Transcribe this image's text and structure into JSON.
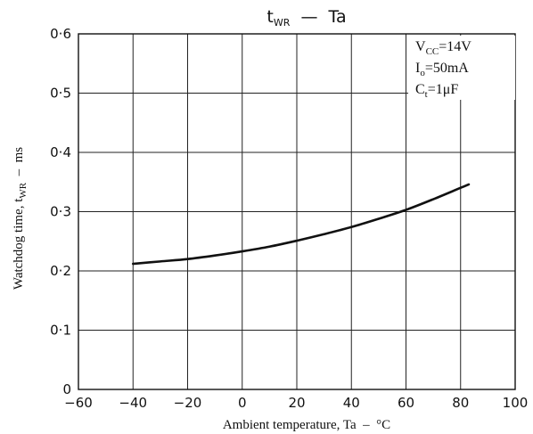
{
  "chart_data": {
    "type": "line",
    "title": {
      "main": "t",
      "main_sub": "WR",
      "rest": "  —  Ta"
    },
    "xlabel": "Ambient temperature, Ta  –  °C",
    "ylabel": {
      "main": "Watchdog time, t",
      "sub": "WR",
      "rest": "  –  ms"
    },
    "xlim": [
      -60,
      100
    ],
    "ylim": [
      0,
      0.6
    ],
    "x_ticks": [
      -60,
      -40,
      -20,
      0,
      20,
      40,
      60,
      80,
      100
    ],
    "x_tick_labels": [
      "−60",
      "−40",
      "−20",
      "0",
      "20",
      "40",
      "60",
      "80",
      "100"
    ],
    "y_ticks": [
      0,
      0.1,
      0.2,
      0.3,
      0.4,
      0.5,
      0.6
    ],
    "y_tick_labels": [
      "0",
      "0·1",
      "0·2",
      "0·3",
      "0·4",
      "0·5",
      "0·6"
    ],
    "grid": true,
    "series": [
      {
        "x": [
          -40,
          -30,
          -20,
          -10,
          0,
          10,
          20,
          30,
          40,
          50,
          60,
          70,
          83
        ],
        "y": [
          0.212,
          0.216,
          0.22,
          0.226,
          0.233,
          0.241,
          0.251,
          0.262,
          0.274,
          0.288,
          0.303,
          0.321,
          0.346
        ]
      }
    ],
    "conditions": [
      {
        "main": "V",
        "sub": "CC",
        "rest": "=14V"
      },
      {
        "main": "I",
        "sub": "o",
        "rest": "=50mA"
      },
      {
        "main": "C",
        "sub": "t",
        "rest": "=1μF"
      }
    ],
    "colors": {
      "line": "#111111",
      "grid": "#222222"
    }
  }
}
